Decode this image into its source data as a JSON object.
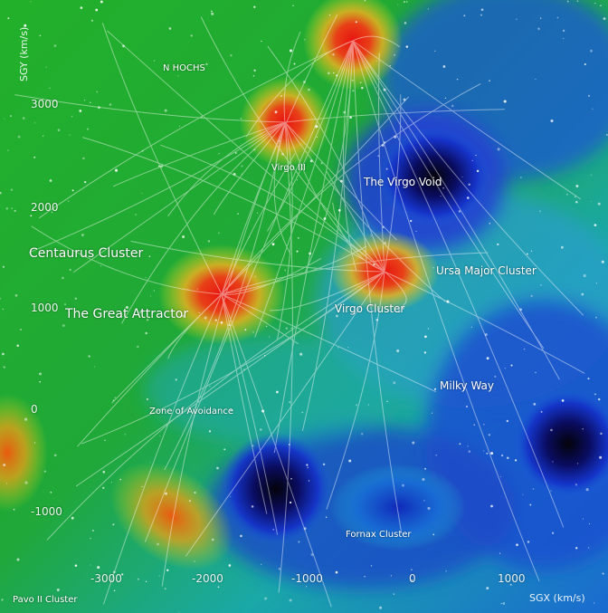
{
  "map": {
    "labels": {
      "shapley": "N HOCHS",
      "virgo_3": "Virgo III",
      "virgo_void": "The Virgo Void",
      "centaurus": "Centaurus Cluster",
      "great_attractor": "The Great Attractor",
      "ursa_major": "Ursa Major Cluster",
      "virgo_cluster": "Virgo Cluster",
      "milky_way": "Milky Way",
      "zone_of_avoidance": "Zone of Avoidance",
      "fornax": "Fornax Cluster",
      "pavo": "Pavo II Cluster"
    },
    "axes": {
      "y_title": "SGY (km/s)",
      "x_title": "SGX (km/s)",
      "y_ticks": [
        "3000",
        "2000",
        "1000",
        "0",
        "-1000"
      ],
      "x_ticks": [
        "-3000",
        "-2000",
        "-1000",
        "0",
        "1000"
      ]
    },
    "colors": {
      "high_density": "#d81e0a",
      "mid_density": "#20b828",
      "low_density": "#1a2fc8",
      "void": "#050510",
      "flow_lines": "#ffffff"
    }
  }
}
